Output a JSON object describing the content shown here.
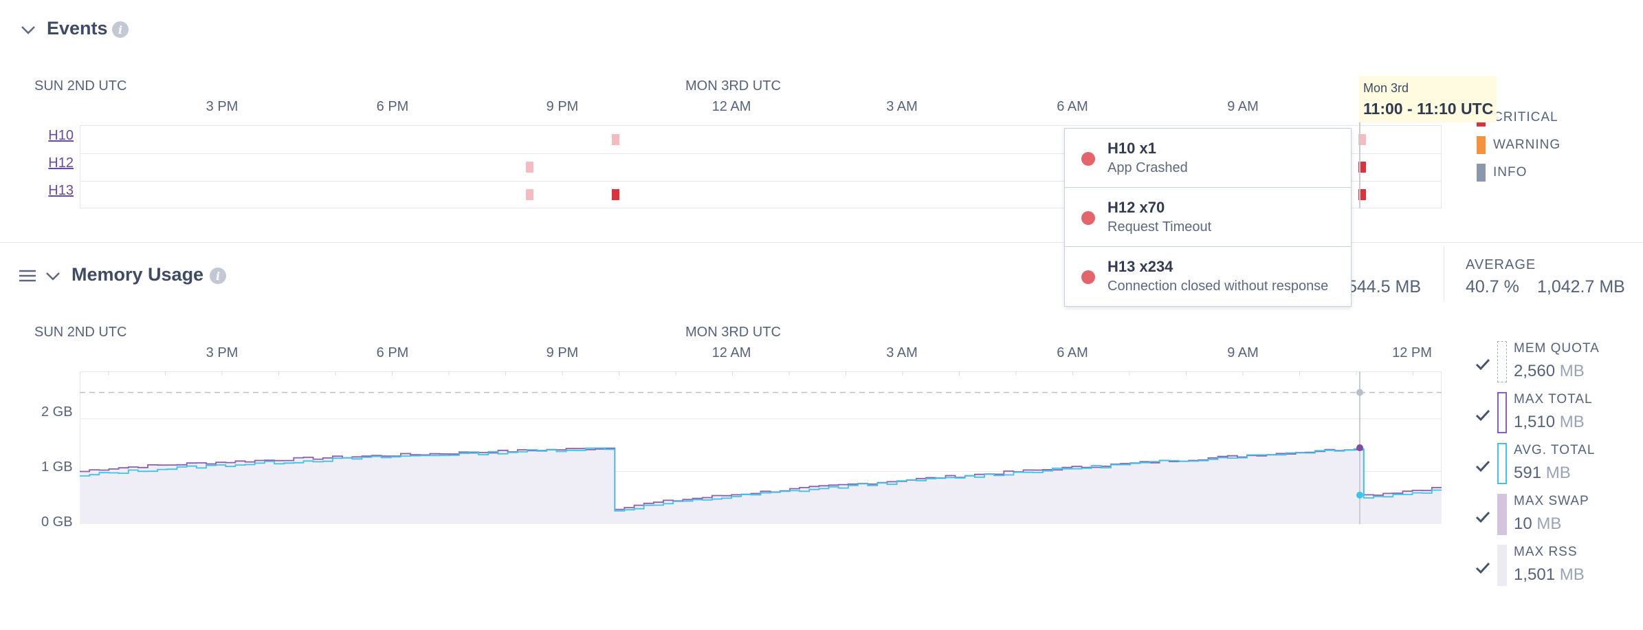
{
  "events": {
    "title": "Events",
    "date_left": "SUN 2ND UTC",
    "date_mid": "MON 3RD UTC",
    "ticks": [
      "3 PM",
      "6 PM",
      "9 PM",
      "12 AM",
      "3 AM",
      "6 AM",
      "9 AM"
    ],
    "rows": [
      {
        "label": "H10"
      },
      {
        "label": "H12"
      },
      {
        "label": "H13"
      }
    ],
    "legend": [
      {
        "label": "CRITICAL",
        "color": "#d8333f"
      },
      {
        "label": "WARNING",
        "color": "#f5923e"
      },
      {
        "label": "INFO",
        "color": "#8b97ad"
      }
    ],
    "hover": {
      "date": "Mon 3rd",
      "range": "11:00 - 11:10 UTC"
    },
    "tooltip": [
      {
        "code": "H10 x1",
        "desc": "App Crashed",
        "color": "#e2646d"
      },
      {
        "code": "H12 x70",
        "desc": "Request Timeout",
        "color": "#e2646d"
      },
      {
        "code": "H13 x234",
        "desc": "Connection closed without response",
        "color": "#e2646d"
      }
    ]
  },
  "memory": {
    "title": "Memory Usage",
    "date_left": "SUN 2ND UTC",
    "date_mid": "MON 3RD UTC",
    "ticks": [
      "3 PM",
      "6 PM",
      "9 PM",
      "12 AM",
      "3 AM",
      "6 AM",
      "9 AM",
      "12 PM"
    ],
    "y_labels": [
      "2 GB",
      "1 GB",
      "0 GB"
    ],
    "stats": {
      "partial_value": "544.5 MB",
      "average_label": "AVERAGE",
      "average_pct": "40.7 %",
      "average_mb": "1,042.7 MB"
    },
    "legend": [
      {
        "name": "MEM QUOTA",
        "value": "2,560",
        "unit": "MB",
        "checked": true
      },
      {
        "name": "MAX TOTAL",
        "value": "1,510",
        "unit": "MB",
        "checked": true
      },
      {
        "name": "AVG. TOTAL",
        "value": "591",
        "unit": "MB",
        "checked": true
      },
      {
        "name": "MAX SWAP",
        "value": "10",
        "unit": "MB",
        "checked": true
      },
      {
        "name": "MAX RSS",
        "value": "1,501",
        "unit": "MB",
        "checked": true
      }
    ]
  },
  "chart_data": {
    "type": "line",
    "title": "Memory Usage",
    "xlabel": "",
    "ylabel": "",
    "ylim": [
      0,
      2.9
    ],
    "y_unit": "GB",
    "x_ticks": [
      "3 PM",
      "6 PM",
      "9 PM",
      "12 AM",
      "3 AM",
      "6 AM",
      "9 AM",
      "12 PM"
    ],
    "series": [
      {
        "name": "MEM QUOTA",
        "values": [
          2.5,
          2.5,
          2.5,
          2.5,
          2.5,
          2.5,
          2.5,
          2.5,
          2.5
        ]
      },
      {
        "name": "MAX TOTAL",
        "values": [
          1.0,
          1.2,
          1.35,
          1.45,
          0.3,
          0.7,
          1.2,
          1.45,
          0.55
        ]
      },
      {
        "name": "AVG. TOTAL",
        "values": [
          0.9,
          1.15,
          1.3,
          1.45,
          0.25,
          0.65,
          1.15,
          1.45,
          0.5
        ]
      }
    ]
  }
}
